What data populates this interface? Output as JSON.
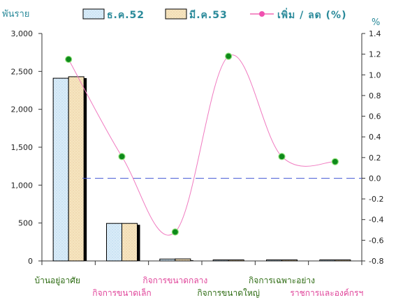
{
  "chart_data": {
    "type": "bar",
    "left_unit": "พันราย",
    "right_unit": "%",
    "categories": [
      "บ้านอยู่อาศัย",
      "กิจการขนาดเล็ก",
      "กิจการขนาดกลาง",
      "กิจการขนาดใหญ่",
      "กิจการเฉพาะอย่าง",
      "ราชการและองค์กรฯ"
    ],
    "series": [
      {
        "name": "ธ.ค.52",
        "kind": "bar",
        "axis": "left",
        "values": [
          2410,
          495,
          25,
          8,
          10,
          6
        ],
        "color": "#cfe5f4"
      },
      {
        "name": "มี.ค.53",
        "kind": "bar",
        "axis": "left",
        "values": [
          2430,
          495,
          27,
          8,
          10,
          6
        ],
        "color": "#f3dfb8"
      },
      {
        "name": "เพิ่ม / ลด (%)",
        "kind": "line",
        "axis": "right",
        "values": [
          1.15,
          0.21,
          -0.52,
          1.18,
          0.21,
          0.16
        ],
        "color": "#f06ab4"
      }
    ],
    "left_ylim": [
      0,
      3000
    ],
    "left_ticks": [
      "0",
      "500",
      "1,000",
      "1,500",
      "2,000",
      "2,500",
      "3,000"
    ],
    "right_ylim": [
      -0.8,
      1.4
    ],
    "right_ticks": [
      "-0.8",
      "-0.6",
      "-0.4",
      "-0.2",
      "0.0",
      "0.2",
      "0.4",
      "0.6",
      "0.8",
      "1.0",
      "1.2",
      "1.4"
    ],
    "legend_position": "top",
    "zero_line": true,
    "colors": {
      "bar_edge": "#000000",
      "axis": "#333333",
      "zero_line": "#4b5fd6",
      "marker_fill": "#0e8a1a",
      "marker_edge": "#8ee07a"
    }
  }
}
